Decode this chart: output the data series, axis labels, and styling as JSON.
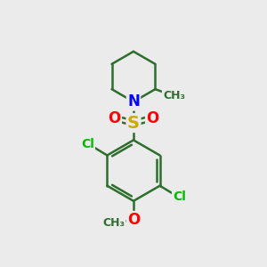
{
  "background_color": "#ebebeb",
  "bond_color": "#2d6e2d",
  "bond_width": 1.8,
  "atom_colors": {
    "N": "#0000ff",
    "S": "#ccaa00",
    "O": "#ff0000",
    "Cl": "#00bb00",
    "C": "#2d6e2d"
  },
  "figsize": [
    3.0,
    3.0
  ],
  "dpi": 100
}
